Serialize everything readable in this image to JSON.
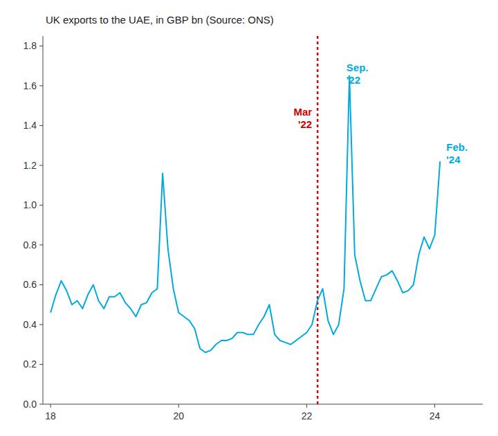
{
  "chart_data": {
    "type": "line",
    "title": "UK exports to the UAE, in GBP bn (Source: ONS)",
    "color": "#00AADD",
    "x": [
      18.0,
      18.083,
      18.167,
      18.25,
      18.333,
      18.417,
      18.5,
      18.583,
      18.667,
      18.75,
      18.833,
      18.917,
      19.0,
      19.083,
      19.167,
      19.25,
      19.333,
      19.417,
      19.5,
      19.583,
      19.667,
      19.75,
      19.833,
      19.917,
      20.0,
      20.083,
      20.167,
      20.25,
      20.333,
      20.417,
      20.5,
      20.583,
      20.667,
      20.75,
      20.833,
      20.917,
      21.0,
      21.083,
      21.167,
      21.25,
      21.333,
      21.417,
      21.5,
      21.583,
      21.667,
      21.75,
      21.833,
      21.917,
      22.0,
      22.083,
      22.167,
      22.25,
      22.333,
      22.417,
      22.5,
      22.583,
      22.667,
      22.75,
      22.833,
      22.917,
      23.0,
      23.083,
      23.167,
      23.25,
      23.333,
      23.417,
      23.5,
      23.583,
      23.667,
      23.75,
      23.833,
      23.917,
      24.0,
      24.083
    ],
    "values": [
      0.46,
      0.55,
      0.62,
      0.57,
      0.5,
      0.52,
      0.48,
      0.55,
      0.6,
      0.52,
      0.48,
      0.54,
      0.54,
      0.56,
      0.51,
      0.48,
      0.44,
      0.5,
      0.51,
      0.56,
      0.58,
      1.16,
      0.78,
      0.58,
      0.46,
      0.44,
      0.42,
      0.38,
      0.28,
      0.26,
      0.27,
      0.3,
      0.32,
      0.32,
      0.33,
      0.36,
      0.36,
      0.35,
      0.35,
      0.4,
      0.44,
      0.5,
      0.35,
      0.32,
      0.31,
      0.3,
      0.32,
      0.34,
      0.36,
      0.4,
      0.52,
      0.58,
      0.42,
      0.35,
      0.4,
      0.58,
      1.65,
      0.75,
      0.62,
      0.52,
      0.52,
      0.58,
      0.64,
      0.65,
      0.67,
      0.62,
      0.56,
      0.57,
      0.6,
      0.75,
      0.84,
      0.78,
      0.85,
      1.22
    ],
    "xlim": [
      17.88,
      24.75
    ],
    "ylim": [
      0.0,
      1.85
    ],
    "xticks": [
      18,
      20,
      22,
      24
    ],
    "yticks": [
      {
        "value": 0.0,
        "label": "0.0"
      },
      0.2,
      0.4,
      0.6,
      0.8,
      {
        "value": 1.0,
        "label": "1.0"
      },
      1.2,
      1.4,
      1.6,
      1.8
    ],
    "grid": false,
    "vlines": [
      {
        "x": 22.17,
        "color": "#CC0000",
        "label": "Mar\n'22",
        "label_y": 1.5
      }
    ],
    "annotations": [
      {
        "text": "Sep.\n'22",
        "x": 22.62,
        "y": 1.72,
        "color": "#00AADD"
      },
      {
        "text": "Feb.\n'24",
        "x": 24.18,
        "y": 1.32,
        "color": "#00AADD"
      }
    ]
  }
}
